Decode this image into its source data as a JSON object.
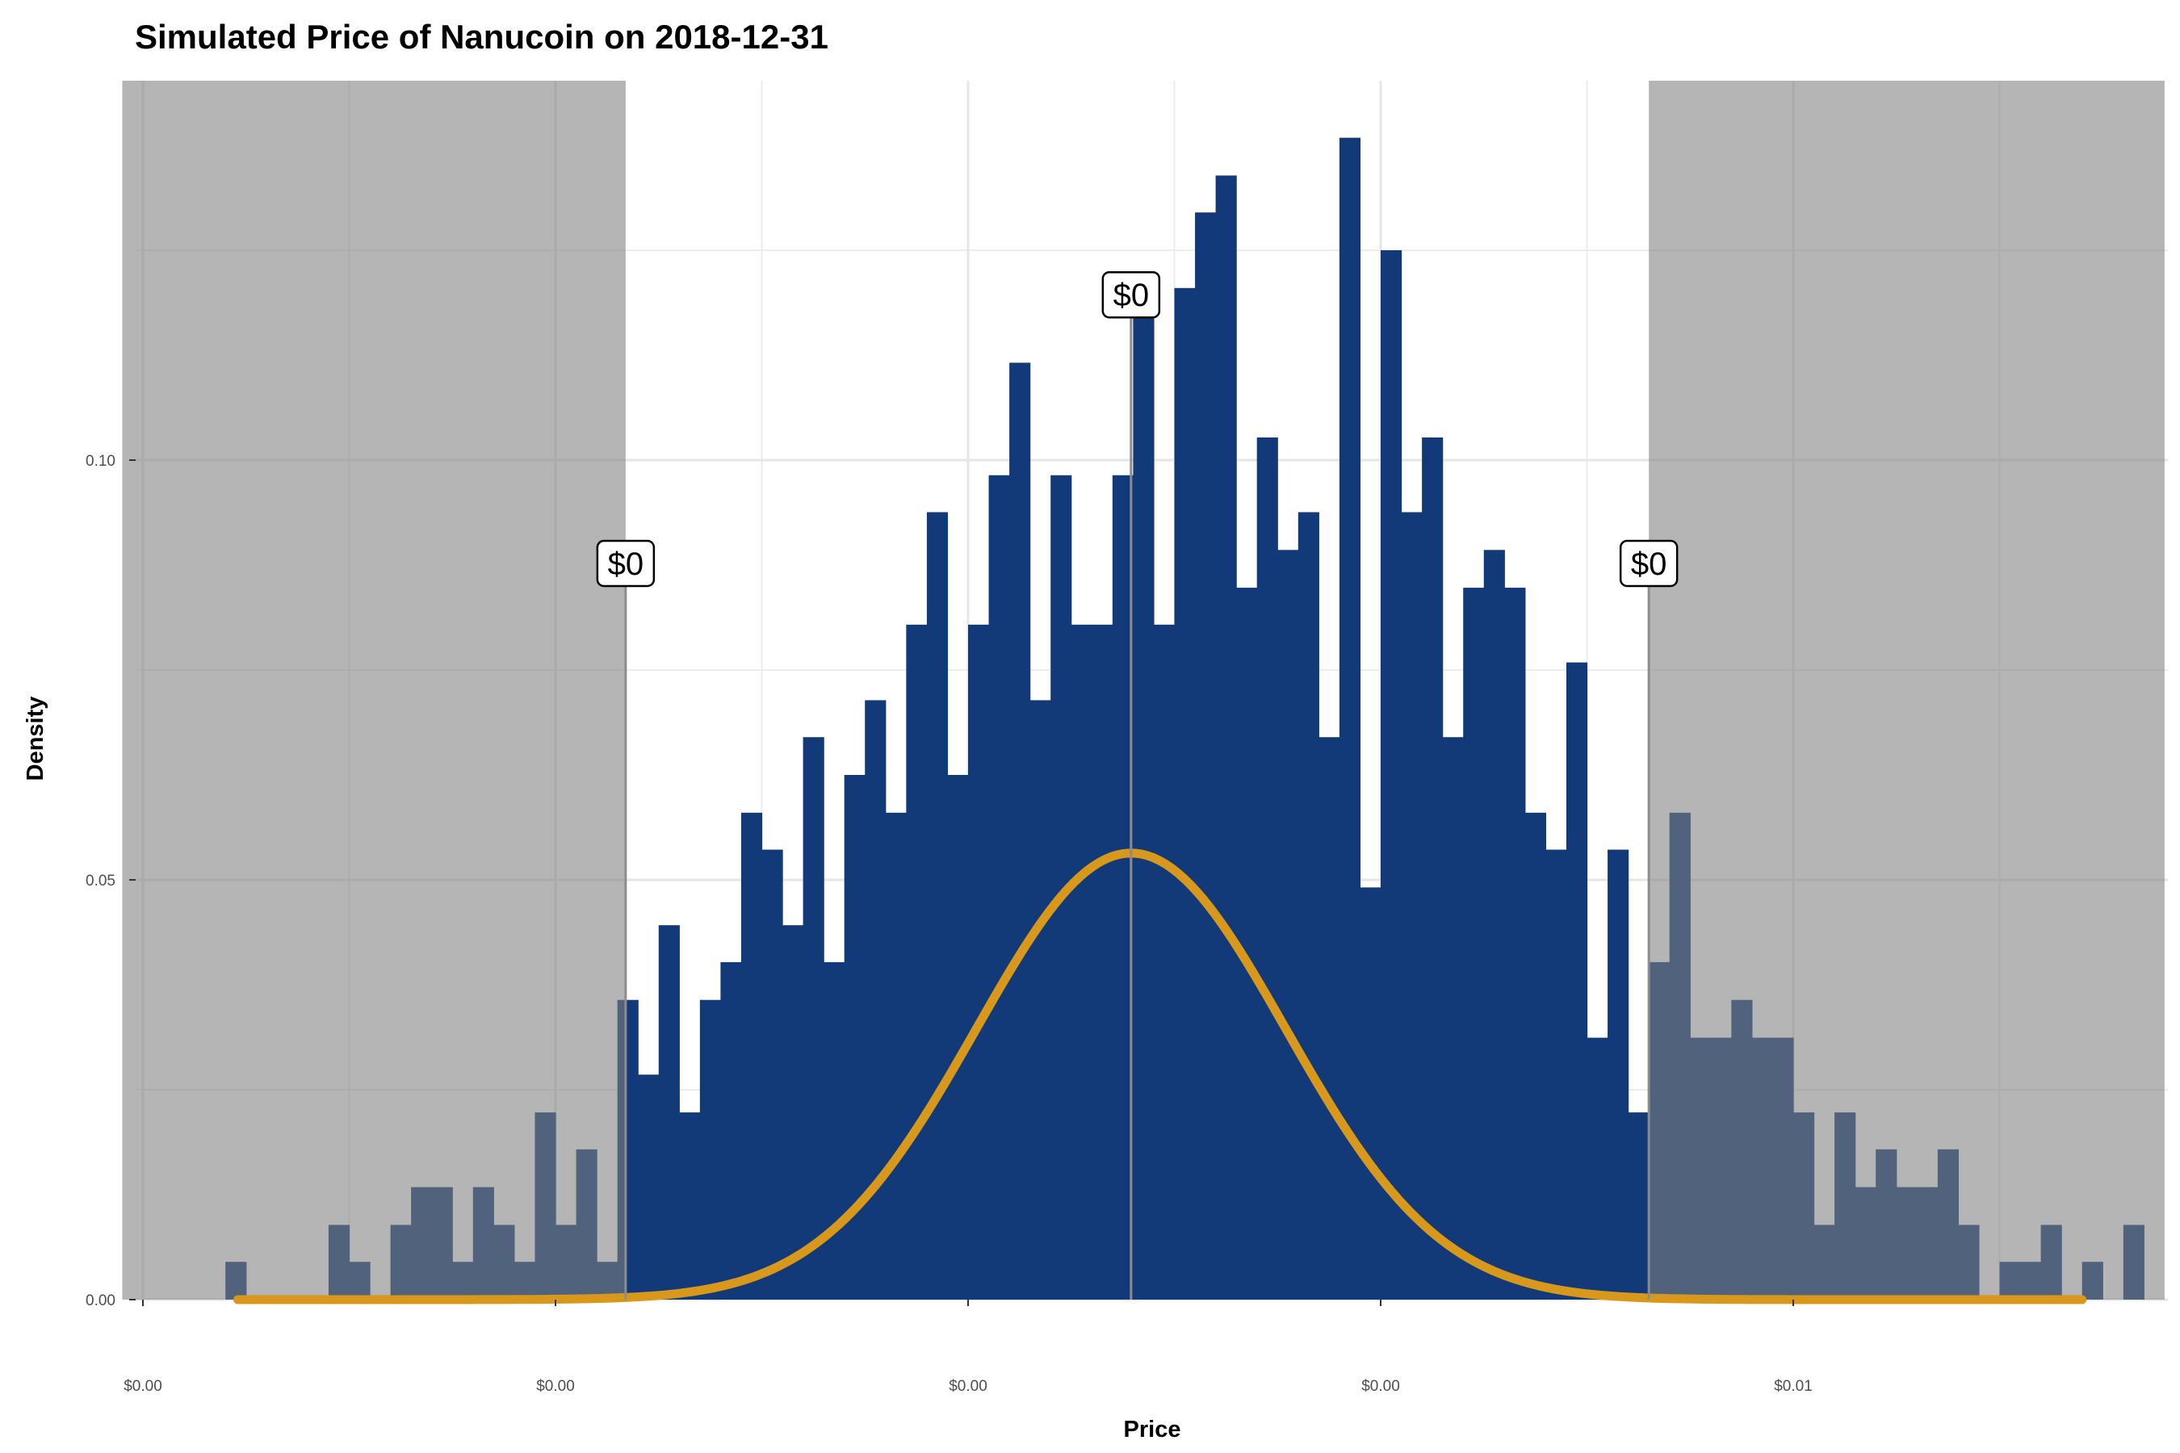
{
  "chart_data": {
    "type": "histogram",
    "title": "Simulated Price of Nanucoin on 2018-12-31",
    "xlabel": "Price",
    "ylabel": "Density",
    "x_domain": [
      -1.05,
      3.9
    ],
    "ylim": [
      0,
      0.145
    ],
    "x_ticks": [
      {
        "value": -1.0,
        "label": "$0.00"
      },
      {
        "value": 0.0,
        "label": "$0.00"
      },
      {
        "value": 1.0,
        "label": "$0.00"
      },
      {
        "value": 2.0,
        "label": "$0.00"
      },
      {
        "value": 3.0,
        "label": "$0.01"
      }
    ],
    "x_minor_ticks": [
      -0.5,
      0.5,
      1.5,
      2.5,
      3.5
    ],
    "y_ticks": [
      {
        "value": 0.0,
        "label": "0.00"
      },
      {
        "value": 0.05,
        "label": "0.05"
      },
      {
        "value": 0.1,
        "label": "0.10"
      }
    ],
    "y_minor_ticks": [
      0.025,
      0.075,
      0.125
    ],
    "bin_start": -0.8,
    "bin_width": 0.05,
    "densities": [
      0.0045,
      0.0,
      0.0,
      0.0,
      0.0,
      0.0089,
      0.0045,
      0.0,
      0.0089,
      0.0134,
      0.0134,
      0.0045,
      0.0134,
      0.0089,
      0.0045,
      0.0223,
      0.0089,
      0.0179,
      0.0045,
      0.0357,
      0.0268,
      0.0446,
      0.0223,
      0.0357,
      0.0402,
      0.058,
      0.0536,
      0.0446,
      0.067,
      0.0402,
      0.0625,
      0.0714,
      0.058,
      0.0804,
      0.0938,
      0.0625,
      0.0804,
      0.0982,
      0.1116,
      0.0714,
      0.0982,
      0.0804,
      0.0804,
      0.0982,
      0.1205,
      0.0804,
      0.1205,
      0.1295,
      0.1339,
      0.0848,
      0.1027,
      0.0893,
      0.0938,
      0.067,
      0.1384,
      0.0491,
      0.125,
      0.0938,
      0.1027,
      0.067,
      0.0848,
      0.0893,
      0.0848,
      0.058,
      0.0536,
      0.0759,
      0.0312,
      0.0536,
      0.0223,
      0.0402,
      0.058,
      0.0312,
      0.0312,
      0.0357,
      0.0312,
      0.0312,
      0.0223,
      0.0089,
      0.0223,
      0.0134,
      0.0179,
      0.0134,
      0.0134,
      0.0179,
      0.0089,
      0.0,
      0.0045,
      0.0045,
      0.0089,
      0.0,
      0.0045,
      0.0,
      0.0089,
      0.0,
      0.0,
      0.0,
      0.0045,
      0.0,
      0.0045,
      0.0045
    ],
    "normal_curve": {
      "mean": 1.395,
      "sd": 0.375,
      "from": -0.77,
      "to": 3.7
    },
    "shaded_regions": [
      {
        "from": -1.05,
        "to": 0.17
      },
      {
        "from": 2.65,
        "to": 3.9
      }
    ],
    "annotations": [
      {
        "x": 0.17,
        "y": 0.085,
        "label": "$0"
      },
      {
        "x": 1.395,
        "y": 0.117,
        "label": "$0"
      },
      {
        "x": 2.65,
        "y": 0.085,
        "label": "$0"
      }
    ],
    "colors": {
      "bar": "#123a78",
      "curve": "#d8981b",
      "shade": "#7f7f7f",
      "grid": "#e6e6e6"
    }
  }
}
